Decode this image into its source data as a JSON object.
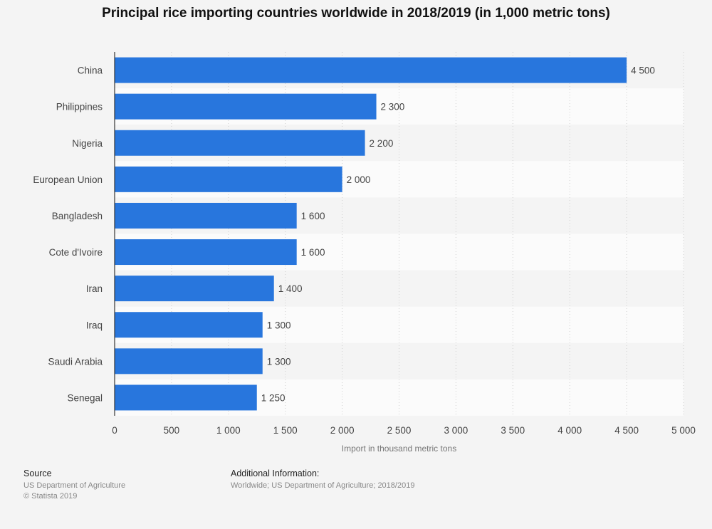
{
  "chart_data": {
    "type": "bar",
    "orientation": "horizontal",
    "title": "Principal rice importing countries worldwide in 2018/2019 (in 1,000 metric tons)",
    "xlabel": "Import in thousand metric tons",
    "ylabel": "",
    "categories": [
      "China",
      "Philippines",
      "Nigeria",
      "European Union",
      "Bangladesh",
      "Cote d'Ivoire",
      "Iran",
      "Iraq",
      "Saudi Arabia",
      "Senegal"
    ],
    "values": [
      4500,
      2300,
      2200,
      2000,
      1600,
      1600,
      1400,
      1300,
      1300,
      1250
    ],
    "value_labels": [
      "4 500",
      "2 300",
      "2 200",
      "2 000",
      "1 600",
      "1 600",
      "1 400",
      "1 300",
      "1 300",
      "1 250"
    ],
    "xlim": [
      0,
      5000
    ],
    "x_ticks": [
      0,
      500,
      1000,
      1500,
      2000,
      2500,
      3000,
      3500,
      4000,
      4500,
      5000
    ],
    "x_tick_labels": [
      "0",
      "500",
      "1 000",
      "1 500",
      "2 000",
      "2 500",
      "3 000",
      "3 500",
      "4 000",
      "4 500",
      "5 000"
    ],
    "grid": true,
    "bar_color": "#2876dd"
  },
  "footer": {
    "source_heading": "Source",
    "source_lines": [
      "US Department of Agriculture",
      "© Statista 2019"
    ],
    "info_heading": "Additional Information:",
    "info_text": "Worldwide; US Department of Agriculture; 2018/2019"
  }
}
